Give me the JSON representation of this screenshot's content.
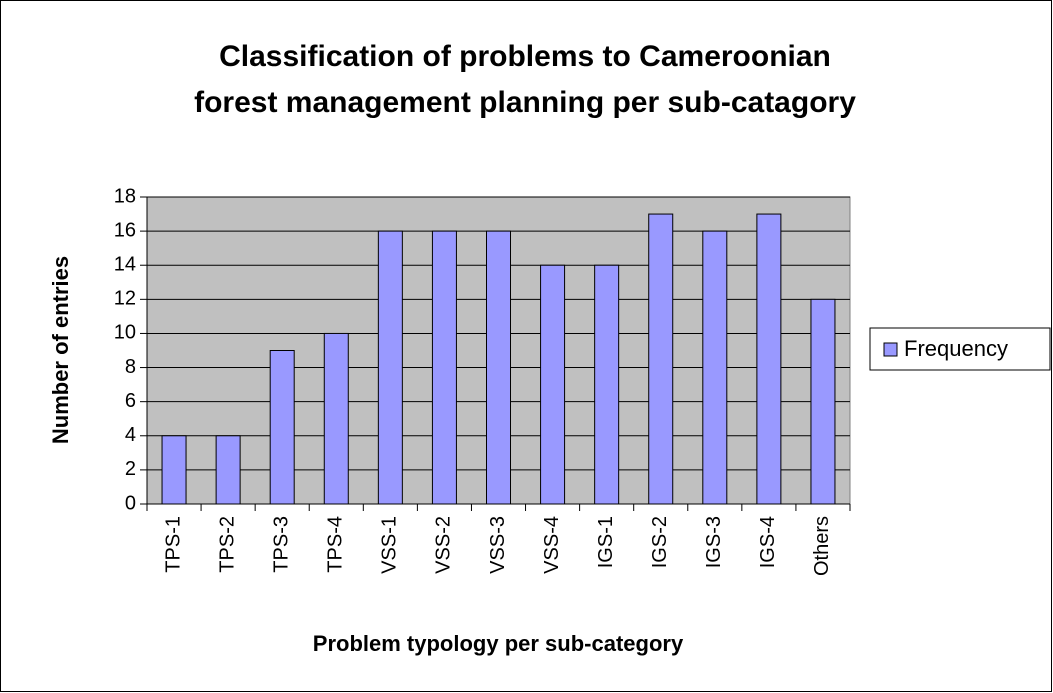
{
  "chart_data": {
    "type": "bar",
    "title": [
      "Classification of problems to Cameroonian",
      "forest management planning per sub-catagory"
    ],
    "x_label": "Problem typology per sub-category",
    "y_label": "Number of entries",
    "categories": [
      "TPS-1",
      "TPS-2",
      "TPS-3",
      "TPS-4",
      "VSS-1",
      "VSS-2",
      "VSS-3",
      "VSS-4",
      "IGS-1",
      "IGS-2",
      "IGS-3",
      "IGS-4",
      "Others"
    ],
    "series": [
      {
        "name": "Frequency",
        "color": "#9999ff",
        "values": [
          4,
          4,
          9,
          10,
          16,
          16,
          16,
          14,
          14,
          17,
          16,
          17,
          12
        ]
      }
    ],
    "ylim": [
      0,
      18
    ],
    "yticks": [
      0,
      2,
      4,
      6,
      8,
      10,
      12,
      14,
      16,
      18
    ],
    "grid": true,
    "legend": "right"
  }
}
